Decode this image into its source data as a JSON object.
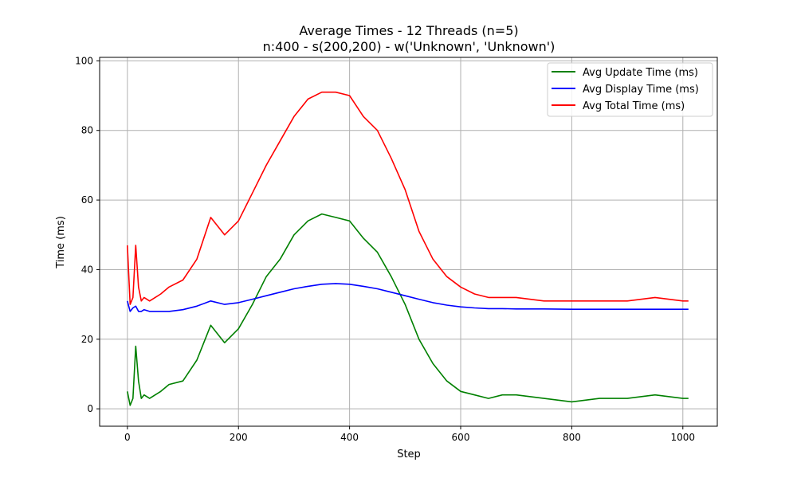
{
  "chart_data": {
    "type": "line",
    "title": "Average Times - 12 Threads (n=5)",
    "subtitle": "n:400 - s(200,200) - w('Unknown', 'Unknown')",
    "xlabel": "Step",
    "ylabel": "Time (ms)",
    "xlim": [
      -50,
      1062
    ],
    "ylim": [
      -5,
      101
    ],
    "xticks": [
      0,
      200,
      400,
      600,
      800,
      1000
    ],
    "yticks": [
      0,
      20,
      40,
      60,
      80,
      100
    ],
    "grid": true,
    "legend_position": "top-right",
    "x": [
      0,
      5,
      10,
      15,
      20,
      25,
      30,
      40,
      50,
      60,
      75,
      100,
      125,
      150,
      175,
      200,
      225,
      250,
      275,
      300,
      325,
      350,
      375,
      400,
      425,
      450,
      475,
      500,
      525,
      550,
      575,
      600,
      625,
      650,
      675,
      700,
      750,
      800,
      850,
      900,
      950,
      1000,
      1010
    ],
    "series": [
      {
        "name": "Avg Update Time (ms)",
        "color": "#008000",
        "values": [
          5,
          1,
          3,
          18,
          8,
          3,
          4,
          3,
          4,
          5,
          7,
          8,
          14,
          24,
          19,
          23,
          30,
          38,
          43,
          50,
          54,
          56,
          55,
          54,
          49,
          45,
          38,
          30,
          20,
          13,
          8,
          5,
          4,
          3,
          4,
          4,
          3,
          2,
          3,
          3,
          4,
          3,
          3
        ]
      },
      {
        "name": "Avg Display Time (ms)",
        "color": "#0000ff",
        "values": [
          31,
          28,
          29,
          29.5,
          28,
          28,
          28.5,
          28,
          28,
          28,
          28,
          28.5,
          29.5,
          31,
          30,
          30.5,
          31.5,
          32.5,
          33.5,
          34.5,
          35.2,
          35.8,
          36,
          35.8,
          35.2,
          34.5,
          33.5,
          32.5,
          31.5,
          30.5,
          29.8,
          29.3,
          29,
          28.8,
          28.8,
          28.7,
          28.7,
          28.6,
          28.6,
          28.6,
          28.6,
          28.6,
          28.6
        ]
      },
      {
        "name": "Avg Total Time (ms)",
        "color": "#ff0000",
        "values": [
          47,
          30,
          32,
          47,
          35,
          31,
          32,
          31,
          32,
          33,
          35,
          37,
          43,
          55,
          50,
          54,
          62,
          70,
          77,
          84,
          89,
          91,
          91,
          90,
          84,
          80,
          72,
          63,
          51,
          43,
          38,
          35,
          33,
          32,
          32,
          32,
          31,
          31,
          31,
          31,
          32,
          31,
          31
        ]
      }
    ]
  }
}
